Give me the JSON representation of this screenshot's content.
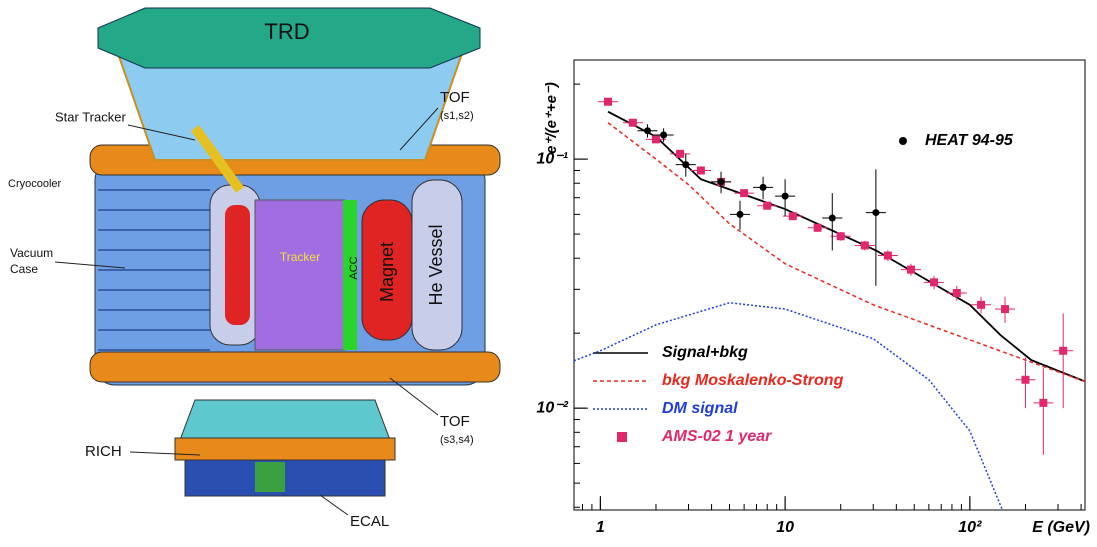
{
  "diagram": {
    "labels": {
      "trd": "TRD",
      "star_tracker": "Star Tracker",
      "tof_top": [
        "TOF",
        "(s1,s2)"
      ],
      "cryocooler": "Cryocooler",
      "vacuum_case": [
        "Vacuum",
        "Case"
      ],
      "tracker": "Tracker",
      "acc": "ACC",
      "magnet": "Magnet",
      "he_vessel": "He Vessel",
      "rich": "RICH",
      "tof_bottom": [
        "TOF",
        "(s3,s4)"
      ],
      "ecal": "ECAL"
    }
  },
  "chart_data": {
    "type": "line",
    "x_label": "E (GeV)",
    "y_label": "e⁺/(e⁺+e⁻)",
    "log_x": true,
    "log_y": true,
    "xlim": [
      0.72,
      420
    ],
    "ylim": [
      0.0039,
      0.25
    ],
    "xticks": [
      1,
      10,
      {
        "value": 100,
        "label": "10²"
      }
    ],
    "yticks": [
      {
        "value": 0.1,
        "label": "10⁻¹"
      },
      {
        "value": 0.01,
        "label": "10⁻²"
      }
    ],
    "series": [
      {
        "name": "Signal+bkg",
        "color": "#000000",
        "style": "solid",
        "in_legend": true,
        "x": [
          1.1,
          2,
          3.5,
          10,
          31,
          100,
          147,
          215,
          420
        ],
        "values": [
          0.155,
          0.123,
          0.083,
          0.063,
          0.043,
          0.026,
          0.0196,
          0.0156,
          0.0128
        ]
      },
      {
        "name": "bkg Moskalenko-Strong",
        "color": "#e8281e",
        "style": "dashed",
        "in_legend": true,
        "x": [
          1.1,
          2,
          3,
          5,
          10,
          30,
          100,
          200,
          420
        ],
        "values": [
          0.14,
          0.1,
          0.079,
          0.055,
          0.038,
          0.026,
          0.0188,
          0.0156,
          0.0128
        ]
      },
      {
        "name": "DM signal",
        "color": "#1f3fd6",
        "style": "dotted",
        "in_legend": true,
        "x": [
          0.72,
          1,
          2,
          5,
          10,
          30,
          60,
          100,
          150
        ],
        "values": [
          0.0155,
          0.017,
          0.0216,
          0.0265,
          0.025,
          0.019,
          0.013,
          0.0081,
          0.0039
        ]
      },
      {
        "name": "AMS-02 1 year",
        "color": "#e0286e",
        "style": "none",
        "marker": "square",
        "in_legend": true,
        "x": [
          1.1,
          1.5,
          2.0,
          2.7,
          3.5,
          4.5,
          6,
          8,
          11,
          15,
          20,
          27,
          36,
          48,
          64,
          85,
          115,
          155,
          200,
          250,
          320
        ],
        "values": [
          0.17,
          0.14,
          0.12,
          0.105,
          0.09,
          0.081,
          0.073,
          0.065,
          0.059,
          0.053,
          0.049,
          0.045,
          0.041,
          0.036,
          0.032,
          0.029,
          0.026,
          0.025,
          0.013,
          0.0105,
          0.017
        ],
        "errors": [
          0.005,
          0.004,
          0.004,
          0.003,
          0.003,
          0.003,
          0.002,
          0.002,
          0.002,
          0.002,
          0.002,
          0.002,
          0.002,
          0.002,
          0.002,
          0.002,
          0.002,
          0.003,
          0.003,
          0.004,
          0.007
        ]
      },
      {
        "name": "HEAT 94-95",
        "color": "#000000",
        "style": "none",
        "marker": "circle",
        "in_legend": false,
        "x": [
          1.8,
          2.2,
          2.9,
          4.5,
          5.7,
          7.6,
          10,
          18,
          31
        ],
        "values": [
          0.13,
          0.125,
          0.095,
          0.081,
          0.06,
          0.077,
          0.071,
          0.058,
          0.061
        ],
        "errors": [
          0.008,
          0.008,
          0.01,
          0.008,
          0.008,
          0.008,
          0.012,
          0.015,
          0.03
        ]
      }
    ]
  }
}
